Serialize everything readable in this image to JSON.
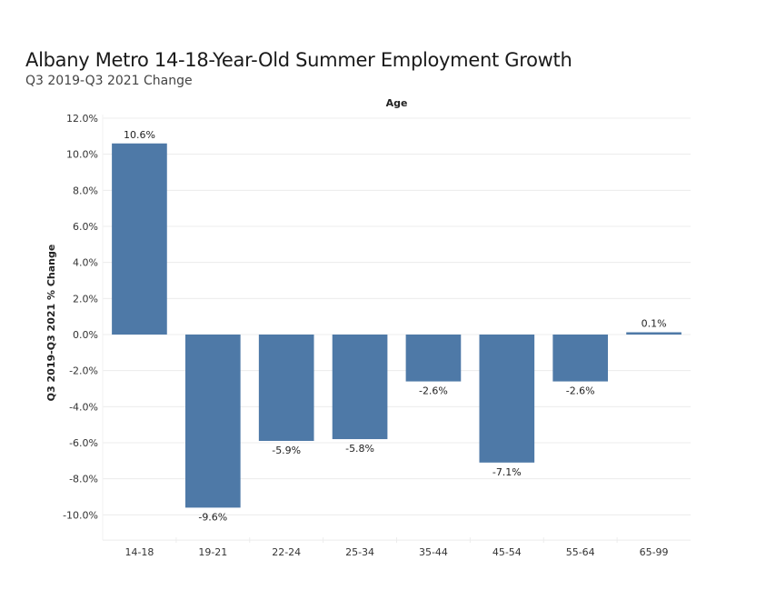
{
  "chart_data": {
    "type": "bar",
    "title": "Albany Metro 14-18-Year-Old Summer Employment Growth",
    "subtitle": "Q3 2019-Q3 2021 Change",
    "xlabel": "Age",
    "ylabel": "Q3 2019-Q3 2021 % Change",
    "categories": [
      "14-18",
      "19-21",
      "22-24",
      "25-34",
      "35-44",
      "45-54",
      "55-64",
      "65-99"
    ],
    "values": [
      10.6,
      -9.6,
      -5.9,
      -5.8,
      -2.6,
      -7.1,
      -2.6,
      0.1
    ],
    "data_labels": [
      "10.6%",
      "-9.6%",
      "-5.9%",
      "-5.8%",
      "-2.6%",
      "-7.1%",
      "-2.6%",
      "0.1%"
    ],
    "yticks": [
      12,
      10,
      8,
      6,
      4,
      2,
      0,
      -2,
      -4,
      -6,
      -8,
      -10
    ],
    "ytick_labels": [
      "12.0%",
      "10.0%",
      "8.0%",
      "6.0%",
      "4.0%",
      "2.0%",
      "0.0%",
      "-2.0%",
      "-4.0%",
      "-6.0%",
      "-8.0%",
      "-10.0%"
    ],
    "ylim": [
      -11.4,
      12
    ],
    "grid": true,
    "bar_color": "#4e79a7",
    "legend": "none"
  }
}
